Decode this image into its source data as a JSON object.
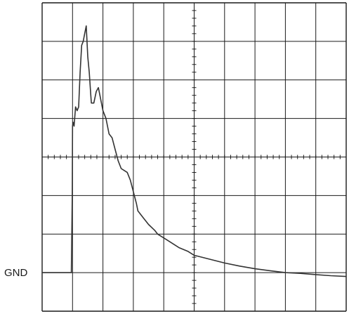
{
  "chart_data": {
    "type": "line",
    "title": "",
    "xlabel": "",
    "ylabel": "",
    "xlim": [
      0,
      10
    ],
    "ylim": [
      -4,
      4
    ],
    "grid": true,
    "grid_divisions": {
      "x": 10,
      "y": 8
    },
    "center_axis_minor_ticks_per_division": 5,
    "reference_marker": {
      "label": "GND",
      "y": -3
    },
    "trace_color": "#333333",
    "grid_color": "#1a1a1a",
    "series": [
      {
        "x": [
          0,
          0.96,
          0.99,
          1.0,
          1.02,
          1.05,
          1.1,
          1.15,
          1.2,
          1.25,
          1.3,
          1.35,
          1.4,
          1.45,
          1.5,
          1.55,
          1.6,
          1.62,
          1.7,
          1.78,
          1.85,
          1.9,
          2.0,
          2.1,
          2.2,
          2.3,
          2.4,
          2.5,
          2.6,
          2.7,
          2.8,
          2.9,
          3.0,
          3.1,
          3.15,
          3.3,
          3.5,
          3.7,
          3.8,
          4.0,
          4.2,
          4.5,
          4.8,
          5.0,
          5.5,
          6.0,
          6.5,
          7.0,
          7.5,
          8.0,
          8.5,
          9.0,
          9.5,
          10.0
        ],
        "y": [
          -3.0,
          -3.0,
          -1.0,
          0.8,
          0.9,
          0.8,
          1.3,
          1.2,
          1.3,
          2.2,
          2.9,
          3.0,
          3.2,
          3.4,
          2.6,
          2.2,
          1.6,
          1.4,
          1.4,
          1.7,
          1.8,
          1.6,
          1.2,
          1.0,
          0.6,
          0.5,
          0.2,
          -0.1,
          -0.3,
          -0.35,
          -0.4,
          -0.6,
          -0.9,
          -1.2,
          -1.4,
          -1.55,
          -1.75,
          -1.9,
          -2.0,
          -2.1,
          -2.2,
          -2.35,
          -2.45,
          -2.55,
          -2.65,
          -2.75,
          -2.83,
          -2.9,
          -2.95,
          -3.0,
          -3.02,
          -3.05,
          -3.08,
          -3.1
        ]
      }
    ]
  }
}
